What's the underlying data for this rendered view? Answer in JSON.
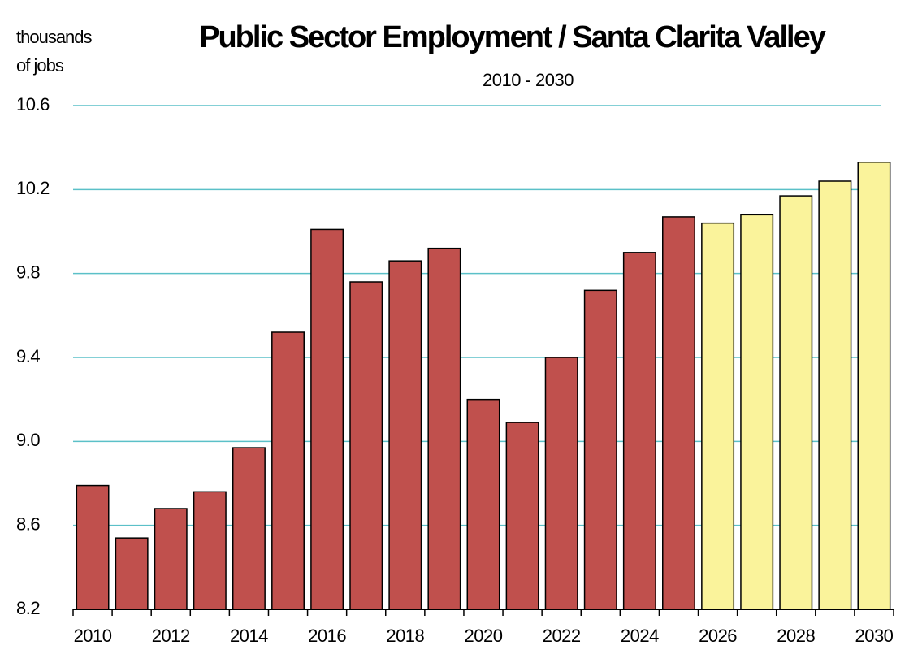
{
  "chart_data": {
    "type": "bar",
    "title": "Public Sector Employment / Santa Clarita Valley",
    "subtitle": "2010 - 2030",
    "y_label": [
      "thousands",
      "of jobs"
    ],
    "categories": [
      "2010",
      null,
      "2012",
      null,
      "2014",
      null,
      "2016",
      null,
      "2018",
      null,
      "2020",
      null,
      "2022",
      null,
      "2024",
      null,
      "2026",
      null,
      "2028",
      null,
      "2030"
    ],
    "values": [
      8.79,
      8.54,
      8.68,
      8.76,
      8.97,
      9.52,
      10.01,
      9.76,
      9.86,
      9.92,
      9.2,
      9.09,
      9.4,
      9.72,
      9.9,
      10.07,
      10.04,
      10.08,
      10.17,
      10.24,
      10.33
    ],
    "colors": [
      "#c0504d",
      "#c0504d",
      "#c0504d",
      "#c0504d",
      "#c0504d",
      "#c0504d",
      "#c0504d",
      "#c0504d",
      "#c0504d",
      "#c0504d",
      "#c0504d",
      "#c0504d",
      "#c0504d",
      "#c0504d",
      "#c0504d",
      "#c0504d",
      "#faf39b",
      "#faf39b",
      "#faf39b",
      "#faf39b",
      "#faf39b"
    ],
    "ylim": [
      8.2,
      10.6
    ],
    "yticks": [
      8.2,
      8.6,
      {
        "value": 9,
        "label": "9.0"
      },
      9.4,
      9.8,
      10.2,
      10.6
    ],
    "grid": true,
    "grid_color": "#5bc0c8"
  }
}
